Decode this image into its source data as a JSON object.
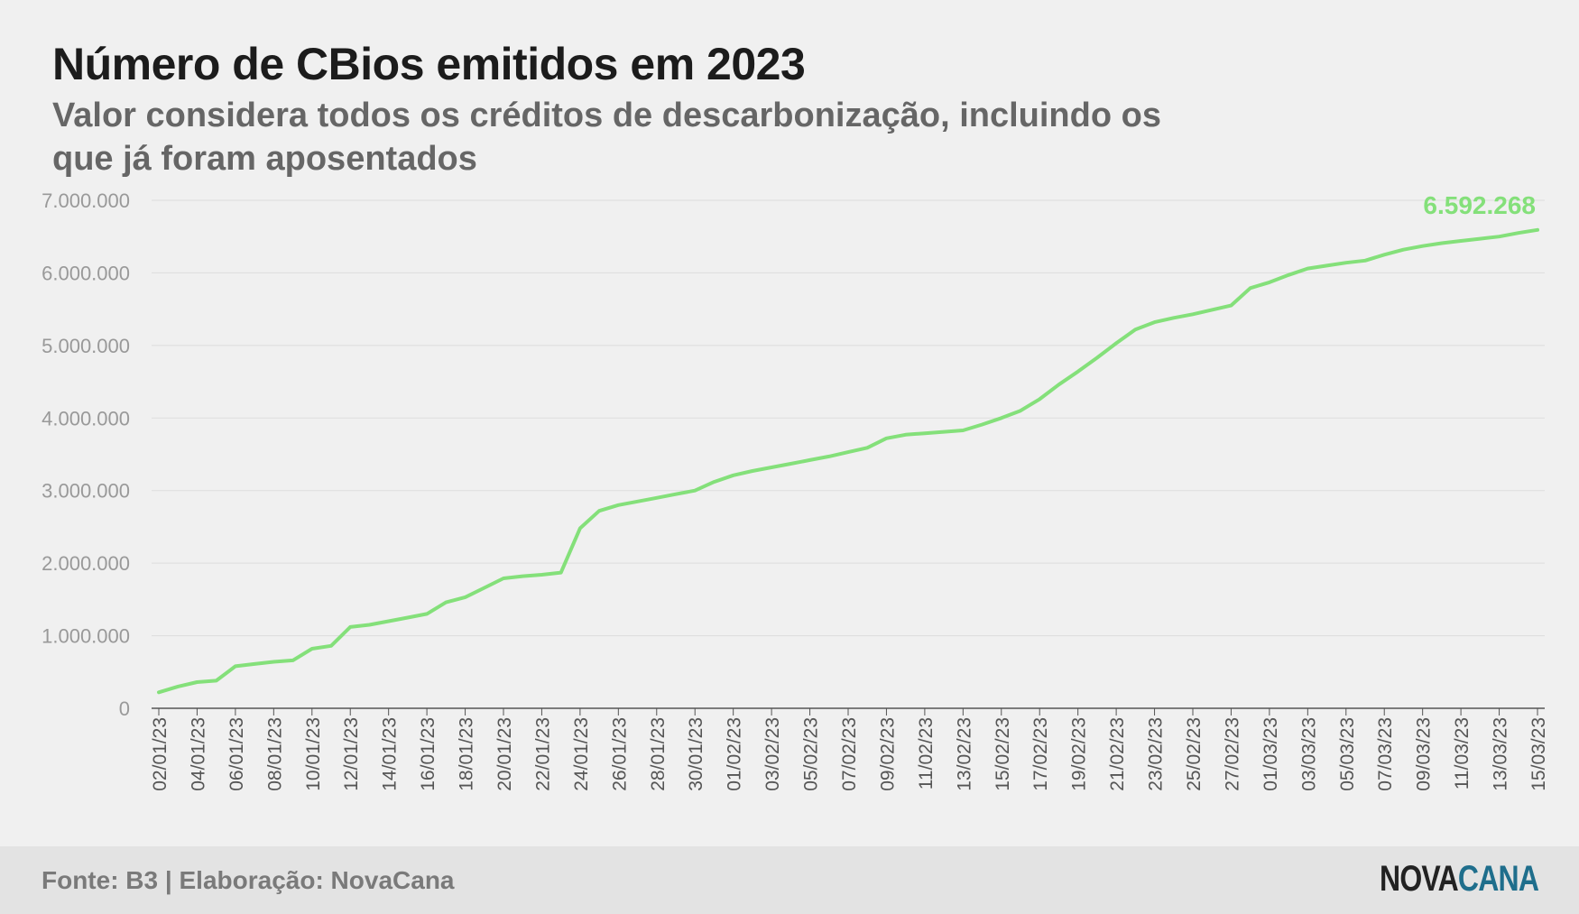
{
  "chart_data": {
    "type": "line",
    "title": "Número de CBios emitidos em 2023",
    "subtitle": "Valor considera todos os créditos de descarbonização, incluindo os que já foram aposentados",
    "xlabel": "",
    "ylabel": "",
    "ylim": [
      0,
      7000000
    ],
    "yticks": [
      0,
      1000000,
      2000000,
      3000000,
      4000000,
      5000000,
      6000000,
      7000000
    ],
    "ytick_labels": [
      "0",
      "1.000.000",
      "2.000.000",
      "3.000.000",
      "4.000.000",
      "5.000.000",
      "6.000.000",
      "7.000.000"
    ],
    "grid": true,
    "x_tick_labels": [
      "02/01/23",
      "04/01/23",
      "06/01/23",
      "08/01/23",
      "10/01/23",
      "12/01/23",
      "14/01/23",
      "16/01/23",
      "18/01/23",
      "20/01/23",
      "22/01/23",
      "24/01/23",
      "26/01/23",
      "28/01/23",
      "30/01/23",
      "01/02/23",
      "03/02/23",
      "05/02/23",
      "07/02/23",
      "09/02/23",
      "11/02/23",
      "13/02/23",
      "15/02/23",
      "17/02/23",
      "19/02/23",
      "21/02/23",
      "23/02/23",
      "25/02/23",
      "27/02/23",
      "01/03/23",
      "03/03/23",
      "05/03/23",
      "07/03/23",
      "09/03/23",
      "11/03/23",
      "13/03/23",
      "15/03/23"
    ],
    "series": [
      {
        "color": "#84e07a",
        "points": [
          [
            "02/01/23",
            220000
          ],
          [
            "03/01/23",
            300000
          ],
          [
            "04/01/23",
            360000
          ],
          [
            "05/01/23",
            380000
          ],
          [
            "06/01/23",
            580000
          ],
          [
            "07/01/23",
            610000
          ],
          [
            "08/01/23",
            640000
          ],
          [
            "09/01/23",
            660000
          ],
          [
            "10/01/23",
            820000
          ],
          [
            "11/01/23",
            860000
          ],
          [
            "12/01/23",
            1120000
          ],
          [
            "13/01/23",
            1150000
          ],
          [
            "14/01/23",
            1200000
          ],
          [
            "15/01/23",
            1250000
          ],
          [
            "16/01/23",
            1300000
          ],
          [
            "17/01/23",
            1460000
          ],
          [
            "18/01/23",
            1530000
          ],
          [
            "19/01/23",
            1660000
          ],
          [
            "20/01/23",
            1790000
          ],
          [
            "21/01/23",
            1820000
          ],
          [
            "22/01/23",
            1840000
          ],
          [
            "23/01/23",
            1870000
          ],
          [
            "24/01/23",
            2480000
          ],
          [
            "25/01/23",
            2720000
          ],
          [
            "26/01/23",
            2800000
          ],
          [
            "27/01/23",
            2850000
          ],
          [
            "28/01/23",
            2900000
          ],
          [
            "29/01/23",
            2950000
          ],
          [
            "30/01/23",
            3000000
          ],
          [
            "31/01/23",
            3120000
          ],
          [
            "01/02/23",
            3210000
          ],
          [
            "02/02/23",
            3270000
          ],
          [
            "03/02/23",
            3320000
          ],
          [
            "04/02/23",
            3370000
          ],
          [
            "05/02/23",
            3420000
          ],
          [
            "06/02/23",
            3470000
          ],
          [
            "07/02/23",
            3530000
          ],
          [
            "08/02/23",
            3590000
          ],
          [
            "09/02/23",
            3720000
          ],
          [
            "10/02/23",
            3770000
          ],
          [
            "11/02/23",
            3790000
          ],
          [
            "12/02/23",
            3810000
          ],
          [
            "13/02/23",
            3830000
          ],
          [
            "14/02/23",
            3910000
          ],
          [
            "15/02/23",
            4000000
          ],
          [
            "16/02/23",
            4100000
          ],
          [
            "17/02/23",
            4260000
          ],
          [
            "18/02/23",
            4460000
          ],
          [
            "19/02/23",
            4640000
          ],
          [
            "20/02/23",
            4830000
          ],
          [
            "21/02/23",
            5030000
          ],
          [
            "22/02/23",
            5220000
          ],
          [
            "23/02/23",
            5320000
          ],
          [
            "24/02/23",
            5380000
          ],
          [
            "25/02/23",
            5430000
          ],
          [
            "26/02/23",
            5490000
          ],
          [
            "27/02/23",
            5550000
          ],
          [
            "28/02/23",
            5790000
          ],
          [
            "01/03/23",
            5870000
          ],
          [
            "02/03/23",
            5970000
          ],
          [
            "03/03/23",
            6060000
          ],
          [
            "04/03/23",
            6100000
          ],
          [
            "05/03/23",
            6140000
          ],
          [
            "06/03/23",
            6170000
          ],
          [
            "07/03/23",
            6250000
          ],
          [
            "08/03/23",
            6320000
          ],
          [
            "09/03/23",
            6370000
          ],
          [
            "10/03/23",
            6410000
          ],
          [
            "11/03/23",
            6440000
          ],
          [
            "12/03/23",
            6470000
          ],
          [
            "13/03/23",
            6500000
          ],
          [
            "14/03/23",
            6550000
          ],
          [
            "15/03/23",
            6592268
          ]
        ]
      }
    ],
    "annotations": [
      {
        "label": "6.592.268",
        "x": "15/03/23",
        "y": 6592268,
        "color": "#84e07a"
      }
    ]
  },
  "footer": {
    "source": "Fonte: B3 | Elaboração: NovaCana",
    "logo_part1": "NOVA",
    "logo_part2": "CANA"
  }
}
